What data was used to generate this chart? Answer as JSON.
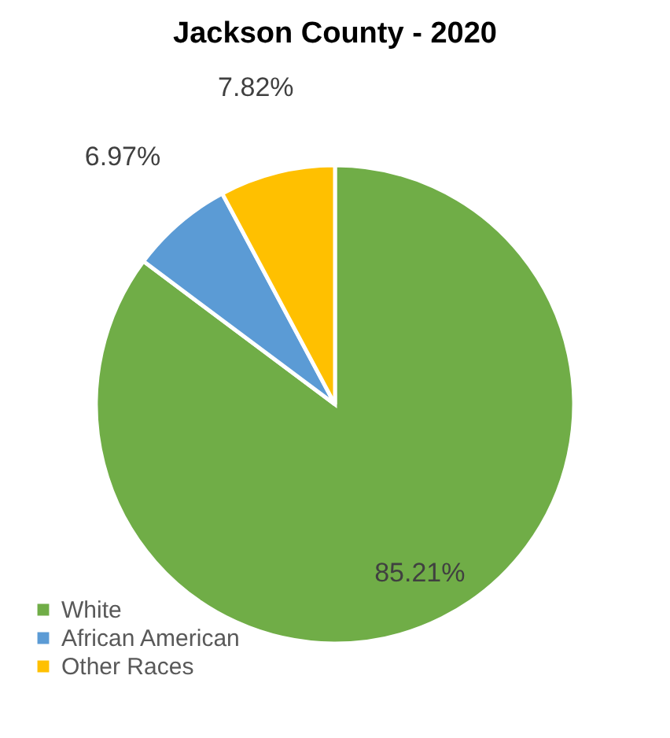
{
  "chart_data": {
    "type": "pie",
    "title": "Jackson County - 2020",
    "categories": [
      "White",
      "African American",
      "Other Races"
    ],
    "values": [
      85.21,
      6.97,
      7.82
    ],
    "colors": [
      "#70ad47",
      "#5b9bd5",
      "#ffc000"
    ],
    "value_labels": [
      "85.21%",
      "6.97%",
      "7.82%"
    ],
    "legend": "bottom left"
  }
}
